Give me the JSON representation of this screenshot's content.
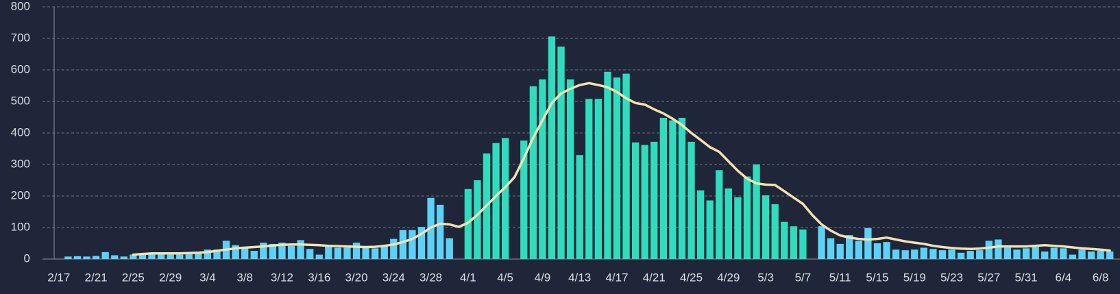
{
  "chart_data": {
    "type": "bar",
    "categories": [
      "2/17",
      null,
      null,
      null,
      "2/21",
      null,
      null,
      null,
      "2/25",
      null,
      null,
      null,
      "2/29",
      null,
      null,
      null,
      "3/4",
      null,
      null,
      null,
      "3/8",
      null,
      null,
      null,
      "3/12",
      null,
      null,
      null,
      "3/16",
      null,
      null,
      null,
      "3/20",
      null,
      null,
      null,
      "3/24",
      null,
      null,
      null,
      "3/28",
      null,
      null,
      null,
      "4/1",
      null,
      null,
      null,
      "4/5",
      null,
      null,
      null,
      "4/9",
      null,
      null,
      null,
      "4/13",
      null,
      null,
      null,
      "4/17",
      null,
      null,
      null,
      "4/21",
      null,
      null,
      null,
      "4/25",
      null,
      null,
      null,
      "4/29",
      null,
      null,
      null,
      "5/3",
      null,
      null,
      null,
      "5/7",
      null,
      null,
      null,
      "5/11",
      null,
      null,
      null,
      "5/15",
      null,
      null,
      null,
      "5/19",
      null,
      null,
      null,
      "5/23",
      null,
      null,
      null,
      "5/27",
      null,
      null,
      null,
      "5/31",
      null,
      null,
      null,
      "6/4",
      null,
      null,
      null,
      "6/8",
      null
    ],
    "series": [
      {
        "type": "bar",
        "values": [
          0,
          8,
          9,
          8,
          10,
          22,
          12,
          8,
          14,
          16,
          18,
          16,
          14,
          14,
          16,
          18,
          30,
          30,
          58,
          44,
          36,
          26,
          52,
          48,
          52,
          42,
          60,
          32,
          14,
          40,
          36,
          36,
          52,
          38,
          34,
          40,
          64,
          92,
          92,
          102,
          194,
          172,
          66,
          0,
          222,
          250,
          335,
          368,
          384,
          0,
          376,
          548,
          570,
          706,
          674,
          570,
          330,
          508,
          508,
          594,
          576,
          588,
          370,
          362,
          372,
          448,
          440,
          448,
          372,
          218,
          186,
          282,
          224,
          196,
          262,
          300,
          202,
          174,
          118,
          104,
          94,
          0,
          104,
          66,
          48,
          76,
          58,
          98,
          50,
          54,
          30,
          28,
          30,
          36,
          32,
          28,
          30,
          20,
          26,
          28,
          58,
          62,
          36,
          30,
          34,
          38,
          24,
          36,
          34,
          14,
          30,
          24,
          26,
          24
        ],
        "colors": [
          "#5cd2f7",
          "#5cd2f7",
          "#5cd2f7",
          "#5cd2f7",
          "#5cd2f7",
          "#5cd2f7",
          "#5cd2f7",
          "#5cd2f7",
          "#5cd2f7",
          "#5cd2f7",
          "#5cd2f7",
          "#5cd2f7",
          "#5cd2f7",
          "#5cd2f7",
          "#5cd2f7",
          "#5cd2f7",
          "#5cd2f7",
          "#5cd2f7",
          "#5cd2f7",
          "#5cd2f7",
          "#5cd2f7",
          "#5cd2f7",
          "#5cd2f7",
          "#5cd2f7",
          "#5cd2f7",
          "#5cd2f7",
          "#5cd2f7",
          "#5cd2f7",
          "#5cd2f7",
          "#5cd2f7",
          "#5cd2f7",
          "#5cd2f7",
          "#5cd2f7",
          "#5cd2f7",
          "#5cd2f7",
          "#5cd2f7",
          "#5cd2f7",
          "#5cd2f7",
          "#5cd2f7",
          "#5cd2f7",
          "#5cd2f7",
          "#5cd2f7",
          "#5cd2f7",
          "#5cd2f7",
          "#2fdcbe",
          "#2fdcbe",
          "#2fdcbe",
          "#2fdcbe",
          "#2fdcbe",
          "#2fdcbe",
          "#2fdcbe",
          "#2fdcbe",
          "#2fdcbe",
          "#2fdcbe",
          "#2fdcbe",
          "#2fdcbe",
          "#2fdcbe",
          "#2fdcbe",
          "#2fdcbe",
          "#2fdcbe",
          "#2fdcbe",
          "#2fdcbe",
          "#2fdcbe",
          "#2fdcbe",
          "#2fdcbe",
          "#2fdcbe",
          "#2fdcbe",
          "#2fdcbe",
          "#2fdcbe",
          "#2fdcbe",
          "#2fdcbe",
          "#2fdcbe",
          "#2fdcbe",
          "#2fdcbe",
          "#2fdcbe",
          "#2fdcbe",
          "#2fdcbe",
          "#2fdcbe",
          "#2fdcbe",
          "#2fdcbe",
          "#2fdcbe",
          "#5cd2f7",
          "#5cd2f7",
          "#5cd2f7",
          "#5cd2f7",
          "#5cd2f7",
          "#5cd2f7",
          "#5cd2f7",
          "#5cd2f7",
          "#5cd2f7",
          "#5cd2f7",
          "#5cd2f7",
          "#5cd2f7",
          "#5cd2f7",
          "#5cd2f7",
          "#5cd2f7",
          "#5cd2f7",
          "#5cd2f7",
          "#5cd2f7",
          "#5cd2f7",
          "#5cd2f7",
          "#5cd2f7",
          "#5cd2f7",
          "#5cd2f7",
          "#5cd2f7",
          "#5cd2f7",
          "#5cd2f7",
          "#5cd2f7",
          "#5cd2f7",
          "#5cd2f7",
          "#5cd2f7",
          "#5cd2f7",
          "#5cd2f7",
          "#5cd2f7"
        ]
      },
      {
        "type": "line",
        "color": "#f2e2b0",
        "values": [
          null,
          null,
          null,
          null,
          null,
          null,
          null,
          null,
          14,
          16,
          18,
          18,
          18,
          18,
          19,
          20,
          22,
          26,
          30,
          34,
          36,
          38,
          40,
          43,
          45,
          46,
          46,
          45,
          44,
          42,
          41,
          40,
          39,
          38,
          39,
          42,
          46,
          54,
          64,
          80,
          100,
          112,
          110,
          102,
          115,
          140,
          170,
          200,
          228,
          260,
          320,
          385,
          440,
          495,
          525,
          540,
          552,
          558,
          552,
          545,
          530,
          510,
          495,
          490,
          475,
          462,
          445,
          425,
          400,
          378,
          355,
          340,
          310,
          280,
          255,
          240,
          236,
          235,
          215,
          195,
          175,
          140,
          110,
          90,
          75,
          68,
          64,
          62,
          64,
          68,
          62,
          56,
          52,
          48,
          42,
          38,
          35,
          33,
          32,
          33,
          36,
          40,
          40,
          40,
          40,
          42,
          44,
          42,
          40,
          37,
          34,
          32,
          30,
          27
        ]
      }
    ],
    "ylim": [
      0,
      800
    ],
    "yticks": [
      0,
      100,
      200,
      300,
      400,
      500,
      600,
      700,
      800
    ],
    "grid": true
  }
}
